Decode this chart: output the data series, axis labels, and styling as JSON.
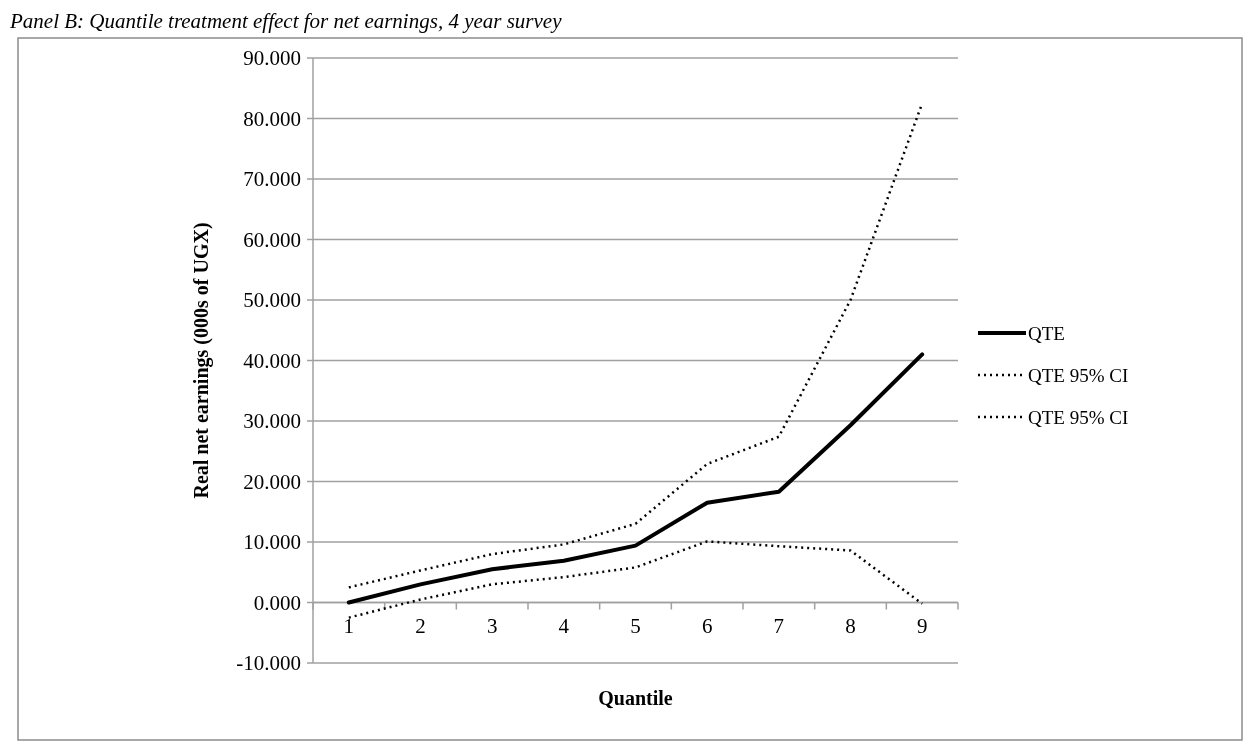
{
  "chart_data": {
    "type": "line",
    "title": "Panel B: Quantile treatment effect for net earnings, 4 year survey",
    "xlabel": "Quantile",
    "ylabel": "Real net earnings (000s of UGX)",
    "categories": [
      "1",
      "2",
      "3",
      "4",
      "5",
      "6",
      "7",
      "8",
      "9"
    ],
    "series": [
      {
        "name": "QTE",
        "color": "#000000",
        "line_style": "solid",
        "values": [
          0,
          3,
          5.5,
          6.9,
          9.4,
          16.5,
          18.3,
          29.3,
          41
        ]
      },
      {
        "name": "QTE 95% CI",
        "color": "#000000",
        "line_style": "dotted",
        "values": [
          2.5,
          5.3,
          8,
          9.6,
          13,
          22.9,
          27.4,
          50,
          82.5
        ]
      },
      {
        "name": "QTE 95% CI",
        "color": "#000000",
        "line_style": "dotted",
        "values": [
          -2.5,
          0.5,
          3,
          4.2,
          5.8,
          10.1,
          9.3,
          8.6,
          -0.2
        ]
      }
    ],
    "ylim": [
      -10,
      90
    ],
    "yticks": [
      {
        "value": -10,
        "label": "-10.000"
      },
      {
        "value": 0,
        "label": "0.000"
      },
      {
        "value": 10,
        "label": "10.000"
      },
      {
        "value": 20,
        "label": "20.000"
      },
      {
        "value": 30,
        "label": "30.000"
      },
      {
        "value": 40,
        "label": "40.000"
      },
      {
        "value": 50,
        "label": "50.000"
      },
      {
        "value": 60,
        "label": "60.000"
      },
      {
        "value": 70,
        "label": "70.000"
      },
      {
        "value": 80,
        "label": "80.000"
      },
      {
        "value": 90,
        "label": "90.000"
      }
    ],
    "grid": "y",
    "legend": "right"
  }
}
